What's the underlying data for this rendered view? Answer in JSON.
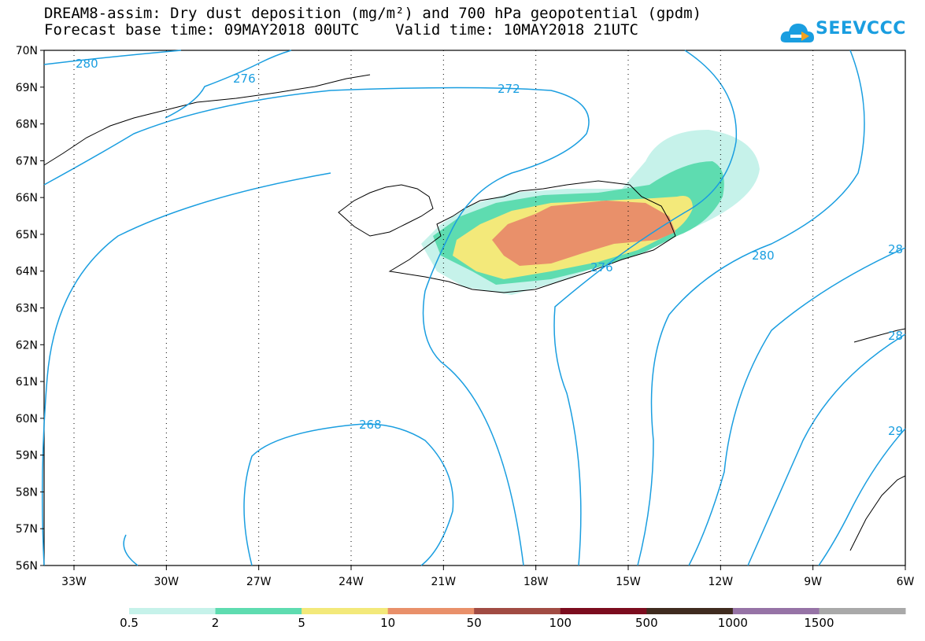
{
  "title": {
    "line1": "DREAM8-assim: Dry dust deposition (mg/m²) and 700 hPa geopotential (gpdm)",
    "line2": "Forecast base time: 09MAY2018 00UTC    Valid time: 10MAY2018 21UTC"
  },
  "logo": {
    "text": "SEEVCCC",
    "icon": "cloud-logo-icon"
  },
  "axes": {
    "lat_labels": [
      "70N",
      "69N",
      "68N",
      "67N",
      "66N",
      "65N",
      "64N",
      "63N",
      "62N",
      "61N",
      "60N",
      "59N",
      "58N",
      "57N",
      "56N"
    ],
    "lon_labels": [
      "33W",
      "30W",
      "27W",
      "24W",
      "21W",
      "18W",
      "15W",
      "12W",
      "9W",
      "6W"
    ]
  },
  "contour_labels": [
    "280",
    "276",
    "272",
    "268",
    "276",
    "280",
    "28",
    "28",
    "29"
  ],
  "legend": {
    "labels": [
      "0.5",
      "2",
      "5",
      "10",
      "50",
      "100",
      "500",
      "1000",
      "1500"
    ],
    "colors": [
      "#c6f2ea",
      "#5edcb0",
      "#f3e97a",
      "#e9906a",
      "#a14b43",
      "#7b0c1e",
      "#3f2b1f",
      "#9673a6",
      "#a9a9a9"
    ]
  },
  "colors": {
    "contour": "#1a9ee0",
    "coast": "#000000"
  }
}
